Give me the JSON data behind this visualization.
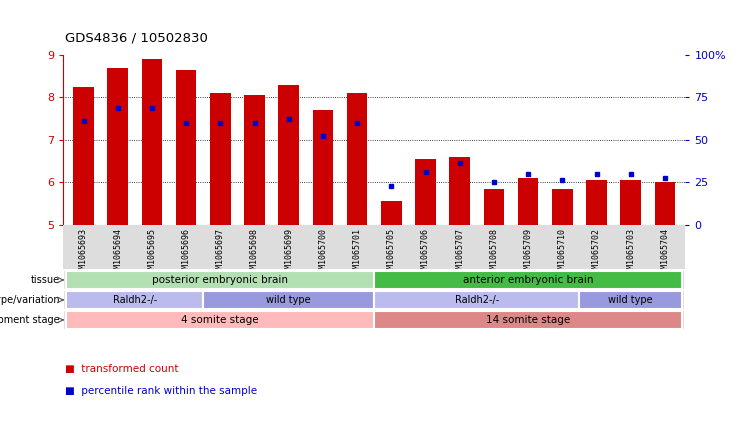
{
  "title": "GDS4836 / 10502830",
  "samples": [
    "GSM1065693",
    "GSM1065694",
    "GSM1065695",
    "GSM1065696",
    "GSM1065697",
    "GSM1065698",
    "GSM1065699",
    "GSM1065700",
    "GSM1065701",
    "GSM1065705",
    "GSM1065706",
    "GSM1065707",
    "GSM1065708",
    "GSM1065709",
    "GSM1065710",
    "GSM1065702",
    "GSM1065703",
    "GSM1065704"
  ],
  "bar_heights": [
    8.25,
    8.7,
    8.9,
    8.65,
    8.1,
    8.05,
    8.3,
    7.7,
    8.1,
    5.55,
    6.55,
    6.6,
    5.85,
    6.1,
    5.85,
    6.05,
    6.05,
    6.0
  ],
  "blue_dot_y": [
    7.45,
    7.75,
    7.75,
    7.4,
    7.4,
    7.4,
    7.5,
    7.1,
    7.4,
    5.9,
    6.25,
    6.45,
    6.0,
    6.2,
    6.05,
    6.2,
    6.2,
    6.1
  ],
  "ylim": [
    5,
    9
  ],
  "yticks": [
    5,
    6,
    7,
    8,
    9
  ],
  "yticks_right": [
    0,
    25,
    50,
    75,
    100
  ],
  "bar_color": "#cc0000",
  "dot_color": "#0000cc",
  "plot_bg": "#ffffff",
  "fig_bg": "#ffffff",
  "tissue_groups": [
    {
      "label": "posterior embryonic brain",
      "start": 0,
      "end": 9,
      "color": "#b3e0b3"
    },
    {
      "label": "anterior embryonic brain",
      "start": 9,
      "end": 18,
      "color": "#44bb44"
    }
  ],
  "genotype_groups": [
    {
      "label": "Raldh2-/-",
      "start": 0,
      "end": 4,
      "color": "#bbbbee"
    },
    {
      "label": "wild type",
      "start": 4,
      "end": 9,
      "color": "#9999dd"
    },
    {
      "label": "Raldh2-/-",
      "start": 9,
      "end": 15,
      "color": "#bbbbee"
    },
    {
      "label": "wild type",
      "start": 15,
      "end": 18,
      "color": "#9999dd"
    }
  ],
  "stage_groups": [
    {
      "label": "4 somite stage",
      "start": 0,
      "end": 9,
      "color": "#ffbbbb"
    },
    {
      "label": "14 somite stage",
      "start": 9,
      "end": 18,
      "color": "#dd8888"
    }
  ],
  "row_labels": [
    "tissue",
    "genotype/variation",
    "development stage"
  ],
  "legend_items": [
    {
      "label": "transformed count",
      "color": "#cc0000"
    },
    {
      "label": "percentile rank within the sample",
      "color": "#0000cc"
    }
  ]
}
